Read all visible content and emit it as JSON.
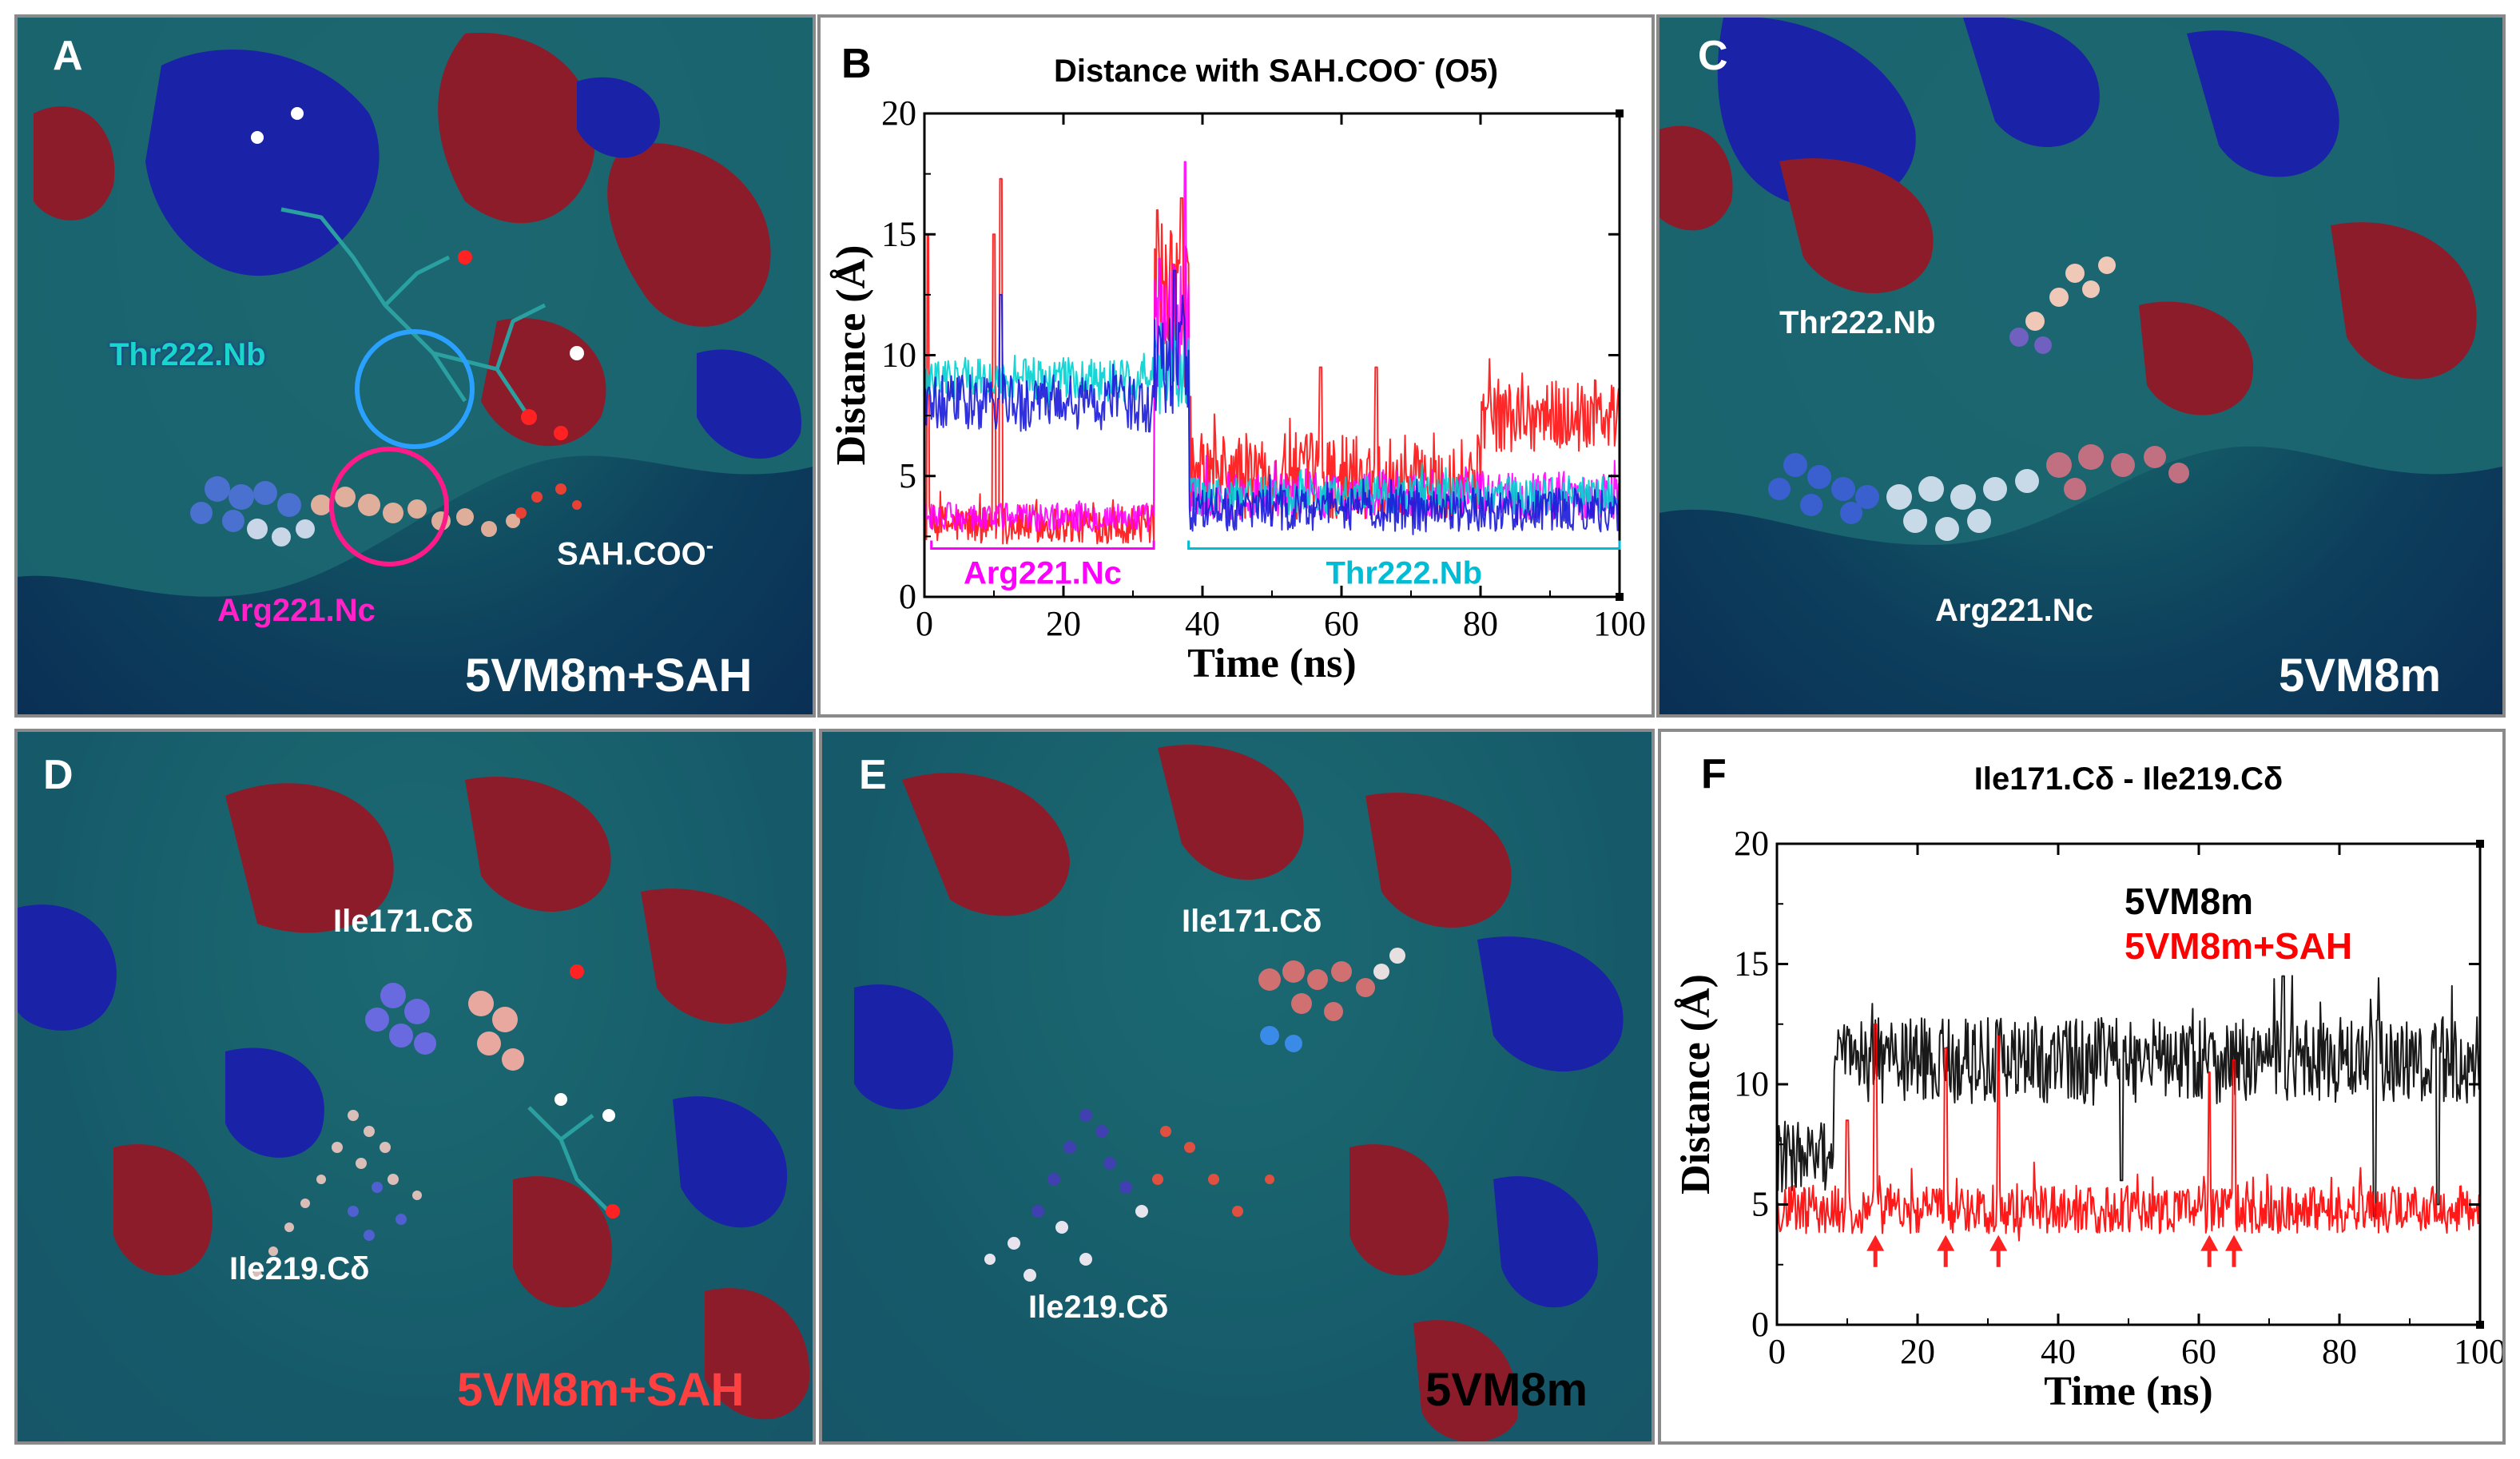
{
  "panels": {
    "A": {
      "letter": "A",
      "thr_label": "Thr222.Nb",
      "sah_label": "SAH.COO",
      "sah_sup": "-",
      "arg_label": "Arg221.Nc",
      "caption": "5VM8m+SAH"
    },
    "C": {
      "letter": "C",
      "thr_label": "Thr222.Nb",
      "arg_label": "Arg221.Nc",
      "caption": "5VM8m"
    },
    "D": {
      "letter": "D",
      "ile171_label": "Ile171.Cδ",
      "ile219_label": "Ile219.Cδ",
      "caption": "5VM8m+SAH"
    },
    "E": {
      "letter": "E",
      "ile171_label": "Ile171.Cδ",
      "ile219_label": "Ile219.Cδ",
      "caption": "5VM8m"
    }
  },
  "colors": {
    "red": "#e8141e",
    "magenta": "#ff00ff",
    "blue": "#1515e6",
    "cyan": "#00cccc",
    "black": "#000000",
    "surface_teal": "#1e6f78",
    "surface_red": "#8e1a2a",
    "surface_blue": "#1a1ab0"
  },
  "chart_data": [
    {
      "id": "B",
      "letter": "B",
      "type": "line",
      "title": "Distance with SAH.COO",
      "title_sup": "-",
      "title_suffix": " (O5)",
      "xlabel": "Time (ns)",
      "ylabel": "Distance (Å)",
      "xlim": [
        0,
        100
      ],
      "ylim": [
        0,
        20
      ],
      "xticks": [
        0,
        20,
        40,
        60,
        80,
        100
      ],
      "yticks": [
        0,
        5,
        10,
        15,
        20
      ],
      "annotations": [
        {
          "text": "Arg221.Nc",
          "x_range": [
            1,
            33
          ],
          "y": 2.0,
          "color": "#ff00ff"
        },
        {
          "text": "Thr222.Nb",
          "x_range": [
            38,
            100
          ],
          "y": 2.0,
          "color": "#00bcd4"
        }
      ],
      "series": [
        {
          "name": "Arg221.Nc (red)",
          "color": "#ff1010",
          "segments": [
            {
              "x": [
                0,
                33
              ],
              "base": 3.0,
              "noise": 0.8
            },
            {
              "x": [
                33,
                38
              ],
              "base": 12.0,
              "noise": 3.5
            },
            {
              "x": [
                38,
                80
              ],
              "base": 5.0,
              "noise": 1.8
            },
            {
              "x": [
                80,
                100
              ],
              "base": 7.5,
              "noise": 1.5
            }
          ],
          "spikes": [
            [
              0.5,
              15
            ],
            [
              11,
              17.3
            ],
            [
              10,
              15
            ],
            [
              33.5,
              16
            ],
            [
              37,
              16.5
            ],
            [
              65,
              9.5
            ],
            [
              57,
              9.5
            ]
          ]
        },
        {
          "name": "Arg221.Nc (magenta)",
          "color": "#ff00ff",
          "segments": [
            {
              "x": [
                0,
                33
              ],
              "base": 3.3,
              "noise": 0.6
            },
            {
              "x": [
                33,
                38
              ],
              "base": 11.0,
              "noise": 3.0
            },
            {
              "x": [
                38,
                100
              ],
              "base": 4.2,
              "noise": 1.0
            }
          ],
          "spikes": [
            [
              37.5,
              18.0
            ],
            [
              33.8,
              14
            ]
          ]
        },
        {
          "name": "Thr222.Nb (cyan)",
          "color": "#00d0d0",
          "segments": [
            {
              "x": [
                0,
                33
              ],
              "base": 9.0,
              "noise": 0.9
            },
            {
              "x": [
                33,
                38
              ],
              "base": 9.5,
              "noise": 2.0
            },
            {
              "x": [
                38,
                100
              ],
              "base": 4.2,
              "noise": 0.8
            }
          ],
          "spikes": []
        },
        {
          "name": "Thr222.Nb (blue)",
          "color": "#1a1ad8",
          "segments": [
            {
              "x": [
                0,
                33
              ],
              "base": 8.0,
              "noise": 1.2
            },
            {
              "x": [
                33,
                38
              ],
              "base": 10.0,
              "noise": 2.5
            },
            {
              "x": [
                38,
                100
              ],
              "base": 3.6,
              "noise": 0.9
            }
          ],
          "spikes": [
            [
              11,
              12.5
            ],
            [
              36,
              13.5
            ]
          ]
        }
      ]
    },
    {
      "id": "F",
      "letter": "F",
      "type": "line",
      "title": "Ile171.Cδ - Ile219.Cδ",
      "xlabel": "Time (ns)",
      "ylabel": "Distance (Å)",
      "xlim": [
        0,
        100
      ],
      "ylim": [
        0,
        20
      ],
      "xticks": [
        0,
        20,
        40,
        60,
        80,
        100
      ],
      "yticks": [
        0,
        5,
        10,
        15,
        20
      ],
      "legend": [
        {
          "text": "5VM8m",
          "color": "#000000"
        },
        {
          "text": "5VM8m+SAH",
          "color": "#ff0000"
        }
      ],
      "arrows_x": [
        14,
        24,
        31.5,
        61.5,
        65
      ],
      "series": [
        {
          "name": "5VM8m",
          "color": "#000000",
          "segments": [
            {
              "x": [
                0,
                8
              ],
              "base": 7.0,
              "noise": 1.5
            },
            {
              "x": [
                8,
                100
              ],
              "base": 11.0,
              "noise": 1.8
            }
          ],
          "spikes": [
            [
              85,
              4.5
            ],
            [
              49,
              6.0
            ],
            [
              94,
              5.0
            ],
            [
              72,
              14.5
            ]
          ]
        },
        {
          "name": "5VM8m+SAH",
          "color": "#ff0000",
          "segments": [
            {
              "x": [
                0,
                100
              ],
              "base": 4.8,
              "noise": 1.0
            }
          ],
          "spikes": [
            [
              14,
              12.5
            ],
            [
              24,
              11.5
            ],
            [
              31.5,
              12.0
            ],
            [
              61.5,
              10.5
            ],
            [
              65,
              11.0
            ],
            [
              10,
              8.5
            ]
          ]
        }
      ]
    }
  ]
}
